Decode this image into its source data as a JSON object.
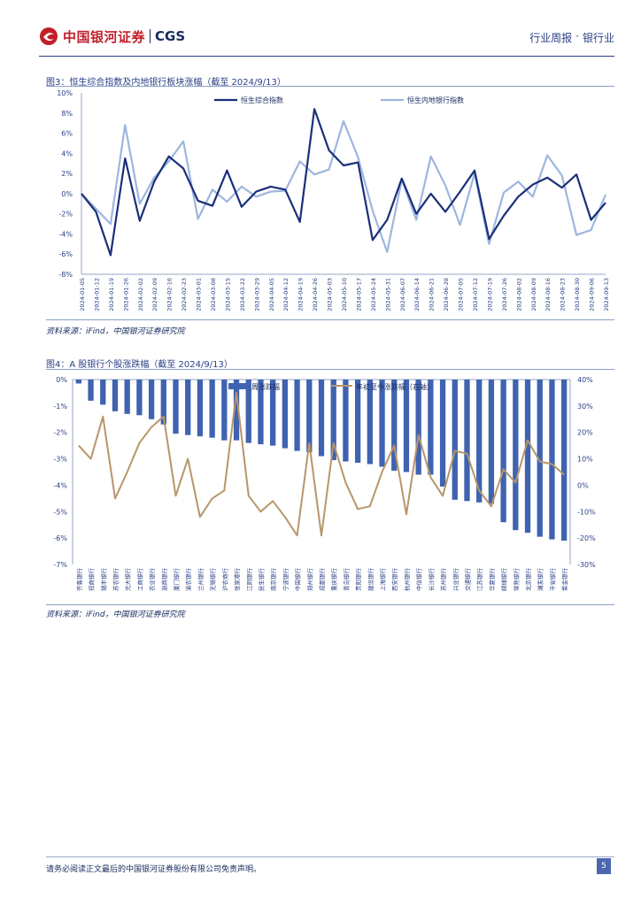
{
  "header": {
    "brand_cn": "中国银河证券",
    "brand_en": "CGS",
    "report_type": "行业周报",
    "separator": "·",
    "industry": "银行业"
  },
  "figure3": {
    "title": "图3：恒生综合指数及内地银行板块涨幅（截至 2024/9/13）",
    "source": "资料来源：iFind，中国银河证券研究院"
  },
  "figure4": {
    "title": "图4：A 股银行个股涨跌幅（截至 2024/9/13）",
    "source": "资料来源：iFind，中国银河证券研究院"
  },
  "footer": {
    "disclaimer": "请务必阅读正文最后的中国银河证券股份有限公司免责声明。",
    "page": "5"
  },
  "chart_data": [
    {
      "type": "line",
      "title": "恒生综合指数及内地银行板块涨幅",
      "x": [
        "2024-01-05",
        "2024-01-12",
        "2024-01-19",
        "2024-01-26",
        "2024-02-02",
        "2024-02-09",
        "2024-02-16",
        "2024-02-23",
        "2024-03-01",
        "2024-03-08",
        "2024-03-15",
        "2024-03-22",
        "2024-03-29",
        "2024-04-05",
        "2024-04-12",
        "2024-04-19",
        "2024-04-26",
        "2024-05-03",
        "2024-05-10",
        "2024-05-17",
        "2024-05-24",
        "2024-05-31",
        "2024-06-07",
        "2024-06-14",
        "2024-06-21",
        "2024-06-28",
        "2024-07-05",
        "2024-07-12",
        "2024-07-19",
        "2024-07-26",
        "2024-08-02",
        "2024-08-09",
        "2024-08-16",
        "2024-08-23",
        "2024-08-30",
        "2024-09-06",
        "2024-09-13"
      ],
      "x_tick_labels": [
        "2024-01-05",
        "2024-01-12",
        "2024-01-19",
        "2024-01-26",
        "2024-02-02",
        "2024-02-09",
        "2024-02-16",
        "2024-02-23",
        "2024-03-01",
        "2024-03-08",
        "2024-03-15",
        "2024-03-22",
        "2024-03-29",
        "2024-04-05",
        "2024-04-12",
        "2024-04-19",
        "2024-04-26",
        "2024-05-03",
        "2024-05-10",
        "2024-05-17",
        "2024-05-24",
        "2024-05-31",
        "2024-06-07",
        "2024-06-14",
        "2024-06-21",
        "2024-06-28",
        "2024-07-05",
        "2024-07-12",
        "2024-07-19",
        "2024-07-26",
        "2024-08-02",
        "2024-08-09",
        "2024-08-16",
        "2024-08-23",
        "2024-08-30",
        "2024-09-06",
        "2024-09-13"
      ],
      "series": [
        {
          "name": "恒生综合指数",
          "color": "#1a2f7a",
          "values": [
            0.0,
            -1.8,
            -6.1,
            3.5,
            -2.7,
            1.2,
            3.7,
            2.5,
            -0.7,
            -1.2,
            2.3,
            -1.3,
            0.2,
            0.7,
            0.4,
            -2.8,
            8.4,
            4.3,
            2.8,
            3.1,
            -4.6,
            -2.6,
            1.5,
            -2.0,
            0.0,
            -1.8,
            0.2,
            2.3,
            -4.5,
            -2.2,
            -0.3,
            0.9,
            1.6,
            0.6,
            1.9,
            -2.6,
            -0.9
          ]
        },
        {
          "name": "恒生内地银行指数",
          "color": "#9eb6df",
          "values": [
            0.0,
            -1.5,
            -3.0,
            6.8,
            -1.0,
            1.6,
            3.2,
            5.2,
            -2.5,
            0.4,
            -0.8,
            0.7,
            -0.3,
            0.2,
            0.3,
            3.2,
            1.9,
            2.4,
            7.2,
            3.6,
            -1.7,
            -5.8,
            1.4,
            -2.6,
            3.7,
            0.8,
            -3.1,
            2.0,
            -5.0,
            0.1,
            1.2,
            -0.3,
            3.8,
            1.8,
            -4.1,
            -3.6,
            -0.1
          ]
        }
      ],
      "y_ticks": [
        "10%",
        "8%",
        "6%",
        "4%",
        "2%",
        "0%",
        "-2%",
        "-4%",
        "-6%",
        "-8%"
      ],
      "ylim": [
        -8,
        10
      ]
    },
    {
      "type": "bar+line",
      "title": "A 股银行个股涨跌幅",
      "categories": [
        "齐鲁银行",
        "招商银行",
        "瑞丰银行",
        "苏农银行",
        "光大银行",
        "工商银行",
        "农业银行",
        "浙商银行",
        "厦门银行",
        "渝农银行",
        "兰州银行",
        "无锡银行",
        "沪农商行",
        "张家港行",
        "江阴银行",
        "民生银行",
        "南京银行",
        "宁波银行",
        "中国银行",
        "郑州银行",
        "成都银行",
        "重庆银行",
        "青岛银行",
        "贵阳银行",
        "建设银行",
        "上海银行",
        "西安银行",
        "杭州银行",
        "中信银行",
        "长沙银行",
        "苏州银行",
        "兴业银行",
        "交通银行",
        "江苏银行",
        "华夏银行",
        "邮储银行",
        "常熟银行",
        "北京银行",
        "浦发银行",
        "平安银行",
        "紫金银行"
      ],
      "x_tick_labels": [
        "齐鲁银行",
        "招商银行",
        "瑞丰银行",
        "苏农银行",
        "光大银行",
        "工商银行",
        "农业银行",
        "浙商银行",
        "厦门银行",
        "渝农银行",
        "兰州银行",
        "无锡银行",
        "沪农商行",
        "张家港行",
        "江阴银行",
        "民生银行",
        "南京银行",
        "宁波银行",
        "中国银行",
        "郑州银行",
        "成都银行",
        "重庆银行",
        "青岛银行",
        "贵阳银行",
        "建设银行",
        "上海银行",
        "西安银行",
        "杭州银行",
        "中信银行",
        "长沙银行",
        "苏州银行",
        "兴业银行",
        "交通银行",
        "江苏银行",
        "华夏银行",
        "邮储银行",
        "常熟银行",
        "北京银行",
        "浦发银行",
        "平安银行",
        "紫金银行"
      ],
      "series": [
        {
          "name": "周涨跌幅",
          "type": "bar",
          "axis": "left",
          "color": "#3f63b0",
          "values": [
            -0.15,
            -0.8,
            -0.95,
            -1.2,
            -1.3,
            -1.35,
            -1.5,
            -1.7,
            -2.05,
            -2.1,
            -2.15,
            -2.2,
            -2.3,
            -2.3,
            -2.4,
            -2.45,
            -2.5,
            -2.6,
            -2.7,
            -2.75,
            -2.9,
            -3.05,
            -3.1,
            -3.15,
            -3.2,
            -3.3,
            -3.45,
            -3.5,
            -3.6,
            -3.6,
            -4.05,
            -4.55,
            -4.6,
            -4.65,
            -4.7,
            -5.4,
            -5.7,
            -5.8,
            -5.95,
            -6.05,
            -6.1
          ]
        },
        {
          "name": "年初至今涨跌幅（右轴）",
          "type": "line",
          "axis": "right",
          "color": "#b8956a",
          "values": [
            15,
            10,
            26,
            -5,
            5,
            16,
            22,
            26,
            -4,
            10,
            -12,
            -5,
            -2,
            35,
            -4,
            -10,
            -6,
            -12,
            -19,
            16,
            -19,
            16,
            1,
            -9,
            -8,
            5,
            15,
            -11,
            19,
            3,
            -4,
            13,
            12,
            -2,
            -8,
            6,
            1,
            17,
            9,
            8,
            4
          ]
        }
      ],
      "y_left_ticks": [
        "0%",
        "-1%",
        "-2%",
        "-3%",
        "-4%",
        "-5%",
        "-6%",
        "-7%"
      ],
      "y_right_ticks": [
        "40%",
        "30%",
        "20%",
        "10%",
        "0%",
        "-10%",
        "-20%",
        "-30%"
      ],
      "ylim_left": [
        -7,
        0
      ],
      "ylim_right": [
        -30,
        40
      ]
    }
  ]
}
